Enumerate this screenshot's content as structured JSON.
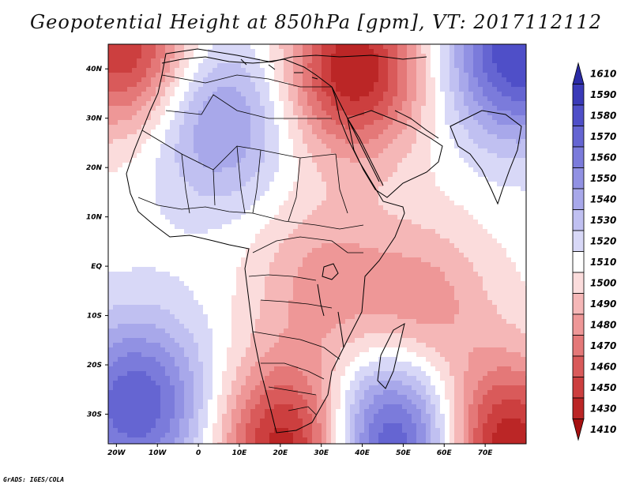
{
  "title": "Geopotential Height at 850hPa [gpm], VT: 2017112112",
  "footer": "GrADS: IGES/COLA",
  "axes": {
    "x_labels": [
      "20W",
      "10W",
      "0",
      "10E",
      "20E",
      "30E",
      "40E",
      "50E",
      "60E",
      "70E"
    ],
    "x_values": [
      -20,
      -10,
      0,
      10,
      20,
      30,
      40,
      50,
      60,
      70
    ],
    "y_labels": [
      "40N",
      "30N",
      "20N",
      "10N",
      "EQ",
      "10S",
      "20S",
      "30S"
    ],
    "y_values": [
      40,
      30,
      20,
      10,
      0,
      -10,
      -20,
      -30
    ],
    "lon_range": [
      -22,
      80
    ],
    "lat_range": [
      -36,
      45
    ]
  },
  "colorbar": {
    "levels": [
      "1610",
      "1590",
      "1580",
      "1570",
      "1560",
      "1550",
      "1540",
      "1530",
      "1520",
      "1510",
      "1500",
      "1490",
      "1480",
      "1470",
      "1460",
      "1450",
      "1430",
      "1410"
    ],
    "colors": [
      "#2b2ba6",
      "#3a3ab8",
      "#4f4fc8",
      "#6565d2",
      "#7b7bdb",
      "#9191e3",
      "#a8a8ea",
      "#c0c0f1",
      "#d8d8f7",
      "#ffffff",
      "#fbdcdc",
      "#f5b7b7",
      "#ee9797",
      "#e47878",
      "#d95a5a",
      "#cc3f3f",
      "#bb2626",
      "#a61010"
    ]
  },
  "chart_data": {
    "type": "heatmap",
    "title": "Geopotential Height at 850hPa [gpm], VT: 2017112112",
    "variable": "Geopotential Height at 850hPa",
    "units": "gpm",
    "valid_time": "2017112112",
    "lon_range": [
      -22,
      80
    ],
    "lat_range": [
      -36,
      45
    ],
    "levels": [
      1410,
      1430,
      1450,
      1460,
      1470,
      1480,
      1490,
      1500,
      1510,
      1520,
      1530,
      1540,
      1550,
      1560,
      1570,
      1580,
      1590,
      1610
    ],
    "field_centers": [
      {
        "lon": -15,
        "lat": -28,
        "value": 1580,
        "kind": "high"
      },
      {
        "lon": 47,
        "lat": -35,
        "value": 1590,
        "kind": "high"
      },
      {
        "lon": 5,
        "lat": 30,
        "value": 1555,
        "kind": "high"
      },
      {
        "lon": 78,
        "lat": 43,
        "value": 1590,
        "kind": "high"
      },
      {
        "lon": 38,
        "lat": 40,
        "value": 1440,
        "kind": "low"
      },
      {
        "lon": -18,
        "lat": 44,
        "value": 1450,
        "kind": "low"
      },
      {
        "lon": 22,
        "lat": -36,
        "value": 1440,
        "kind": "low"
      },
      {
        "lon": 75,
        "lat": -36,
        "value": 1440,
        "kind": "low"
      },
      {
        "lon": 55,
        "lat": -8,
        "value": 1485,
        "kind": "low"
      },
      {
        "lon": 30,
        "lat": -3,
        "value": 1488,
        "kind": "low"
      }
    ]
  }
}
